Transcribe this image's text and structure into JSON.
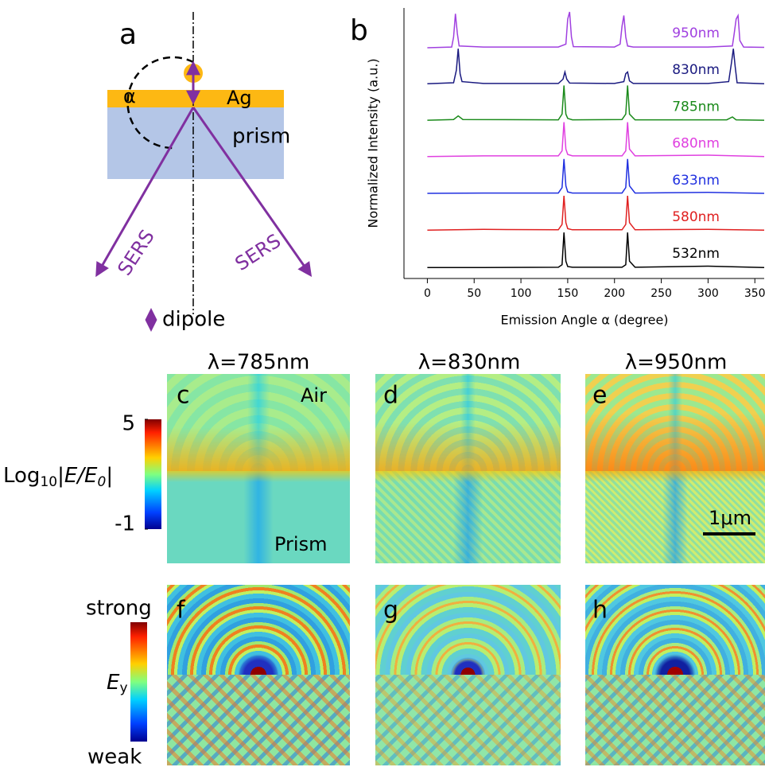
{
  "panel_a": {
    "letter": "a",
    "angle": "α",
    "metal": "Ag",
    "prism": "prism",
    "left_beam": "SERS",
    "right_beam": "SERS",
    "dipole": "dipole"
  },
  "chart_data": {
    "type": "line",
    "letter": "b",
    "x_label": "Emission Angle α (degree)",
    "y_label": "Normalized Intensity (a.u.)",
    "xlim": [
      -25,
      360
    ],
    "xticks": [
      0,
      50,
      100,
      150,
      200,
      250,
      300,
      350
    ],
    "series": [
      {
        "name": "950nm",
        "color": "#a040e0",
        "x": [
          0,
          26,
          28,
          30,
          32,
          34,
          60,
          140,
          148,
          150,
          152,
          154,
          156,
          200,
          206,
          208,
          210,
          212,
          214,
          220,
          300,
          326,
          328,
          330,
          332,
          334,
          338,
          360
        ],
        "values": [
          0,
          0.02,
          0.3,
          0.95,
          0.4,
          0.05,
          0.02,
          0.02,
          0.1,
          0.8,
          1,
          0.3,
          0.03,
          0.02,
          0.1,
          0.6,
          0.9,
          0.3,
          0.05,
          0.02,
          0.02,
          0.05,
          0.4,
          0.8,
          0.9,
          0.2,
          0.02,
          0.01
        ]
      },
      {
        "name": "830nm",
        "color": "#1a1a80",
        "x": [
          0,
          28,
          31,
          33,
          35,
          37,
          60,
          140,
          145,
          147,
          149,
          152,
          200,
          210,
          212,
          214,
          216,
          220,
          300,
          322,
          325,
          327,
          329,
          331,
          360
        ],
        "values": [
          0.02,
          0.05,
          0.4,
          1,
          0.3,
          0.08,
          0.03,
          0.03,
          0.15,
          0.35,
          0.15,
          0.04,
          0.03,
          0.08,
          0.3,
          0.35,
          0.1,
          0.03,
          0.03,
          0.08,
          0.6,
          1,
          0.5,
          0.05,
          0.02
        ]
      },
      {
        "name": "785nm",
        "color": "#1a8a1a",
        "x": [
          0,
          28,
          33,
          38,
          140,
          144,
          146,
          148,
          150,
          155,
          208,
          212,
          214,
          216,
          222,
          320,
          326,
          330,
          360
        ],
        "values": [
          0.03,
          0.05,
          0.15,
          0.05,
          0.04,
          0.2,
          1,
          0.2,
          0.08,
          0.04,
          0.05,
          0.2,
          1,
          0.2,
          0.04,
          0.04,
          0.12,
          0.04,
          0.03
        ]
      },
      {
        "name": "680nm",
        "color": "#e040e0",
        "x": [
          0,
          60,
          140,
          144,
          146,
          148,
          150,
          155,
          208,
          212,
          214,
          216,
          222,
          300,
          360
        ],
        "values": [
          0.04,
          0.06,
          0.06,
          0.2,
          1,
          0.25,
          0.1,
          0.06,
          0.06,
          0.2,
          1,
          0.25,
          0.06,
          0.08,
          0.04
        ]
      },
      {
        "name": "633nm",
        "color": "#2030e0",
        "x": [
          0,
          60,
          140,
          144,
          146,
          148,
          150,
          155,
          208,
          212,
          214,
          216,
          222,
          300,
          360
        ],
        "values": [
          0.04,
          0.05,
          0.05,
          0.2,
          1,
          0.25,
          0.08,
          0.05,
          0.05,
          0.2,
          1,
          0.25,
          0.05,
          0.07,
          0.04
        ]
      },
      {
        "name": "580nm",
        "color": "#e02020",
        "x": [
          0,
          60,
          140,
          144,
          146,
          148,
          150,
          155,
          208,
          212,
          214,
          216,
          222,
          300,
          360
        ],
        "values": [
          0.04,
          0.06,
          0.05,
          0.2,
          1,
          0.25,
          0.08,
          0.05,
          0.05,
          0.2,
          1,
          0.25,
          0.05,
          0.06,
          0.04
        ]
      },
      {
        "name": "532nm",
        "color": "#000000",
        "x": [
          0,
          60,
          140,
          144,
          146,
          148,
          150,
          155,
          208,
          212,
          214,
          216,
          222,
          300,
          360
        ],
        "values": [
          0.02,
          0.02,
          0.03,
          0.1,
          1,
          0.2,
          0.05,
          0.03,
          0.03,
          0.1,
          1,
          0.2,
          0.03,
          0.06,
          0.02
        ]
      }
    ]
  },
  "colorbar_log": {
    "label_parts": [
      "Log",
      "10",
      "|",
      "E/E",
      "0",
      "|"
    ],
    "lim": [
      -1,
      5
    ],
    "ticks": [
      5,
      -1
    ]
  },
  "colorbar_field": {
    "label_parts": [
      "E",
      "y"
    ],
    "top": "strong",
    "bottom": "weak"
  },
  "maps": [
    {
      "letter": "c",
      "title": "λ=785nm",
      "upper": "Air",
      "lower": "Prism"
    },
    {
      "letter": "d",
      "title": "λ=830nm"
    },
    {
      "letter": "e",
      "title": "λ=950nm",
      "scale": "1μm"
    },
    {
      "letter": "f"
    },
    {
      "letter": "g"
    },
    {
      "letter": "h"
    }
  ]
}
